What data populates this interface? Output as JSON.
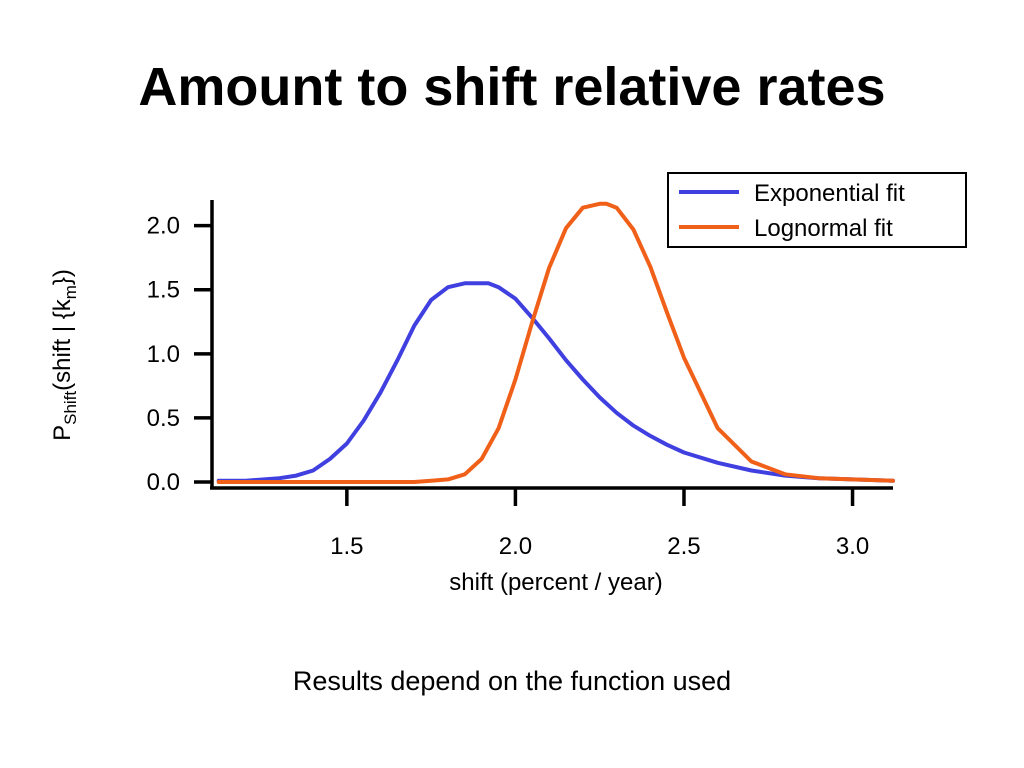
{
  "slide": {
    "title": "Amount to shift relative rates",
    "caption": "Results depend on the function used"
  },
  "colors": {
    "exponential": "#4040e0",
    "lognormal": "#f06018",
    "axis": "#000000"
  },
  "chart_data": {
    "type": "line",
    "xlabel": "shift  (percent / year)",
    "ylabel": {
      "main": "P",
      "main_sub": "Shift",
      "args_open": "(shift | {k",
      "args_sub": "m",
      "args_close": "})"
    },
    "xlim": [
      1.1,
      3.12
    ],
    "ylim": [
      0,
      2.2
    ],
    "x_ticks": [
      1.5,
      2.0,
      2.5,
      3.0
    ],
    "x_tick_labels": [
      "1.5",
      "2.0",
      "2.5",
      "3.0"
    ],
    "y_ticks": [
      0.0,
      0.5,
      1.0,
      1.5,
      2.0
    ],
    "y_tick_labels": [
      "0.0",
      "0.5",
      "1.0",
      "1.5",
      "2.0"
    ],
    "grid": false,
    "legend_position": "top-right",
    "series": [
      {
        "name": "Exponential fit",
        "color": "#4040e0",
        "x": [
          1.12,
          1.2,
          1.3,
          1.35,
          1.4,
          1.45,
          1.5,
          1.55,
          1.6,
          1.65,
          1.7,
          1.75,
          1.8,
          1.85,
          1.9,
          1.92,
          1.95,
          2.0,
          2.05,
          2.1,
          2.15,
          2.2,
          2.25,
          2.3,
          2.35,
          2.4,
          2.45,
          2.5,
          2.6,
          2.7,
          2.8,
          2.9,
          3.0,
          3.12
        ],
        "y": [
          0.01,
          0.01,
          0.03,
          0.05,
          0.09,
          0.18,
          0.3,
          0.48,
          0.7,
          0.95,
          1.22,
          1.42,
          1.52,
          1.55,
          1.55,
          1.55,
          1.52,
          1.43,
          1.28,
          1.12,
          0.95,
          0.8,
          0.66,
          0.54,
          0.44,
          0.36,
          0.29,
          0.23,
          0.15,
          0.09,
          0.05,
          0.03,
          0.02,
          0.01
        ]
      },
      {
        "name": "Lognormal fit",
        "color": "#f06018",
        "x": [
          1.12,
          1.6,
          1.7,
          1.75,
          1.8,
          1.85,
          1.9,
          1.95,
          2.0,
          2.05,
          2.1,
          2.15,
          2.2,
          2.25,
          2.27,
          2.3,
          2.35,
          2.4,
          2.45,
          2.5,
          2.6,
          2.7,
          2.8,
          2.9,
          3.0,
          3.12
        ],
        "y": [
          0.0,
          0.0,
          0.0,
          0.01,
          0.02,
          0.06,
          0.18,
          0.42,
          0.8,
          1.25,
          1.67,
          1.98,
          2.14,
          2.17,
          2.17,
          2.14,
          1.97,
          1.68,
          1.32,
          0.97,
          0.42,
          0.16,
          0.06,
          0.03,
          0.02,
          0.01
        ]
      }
    ]
  }
}
